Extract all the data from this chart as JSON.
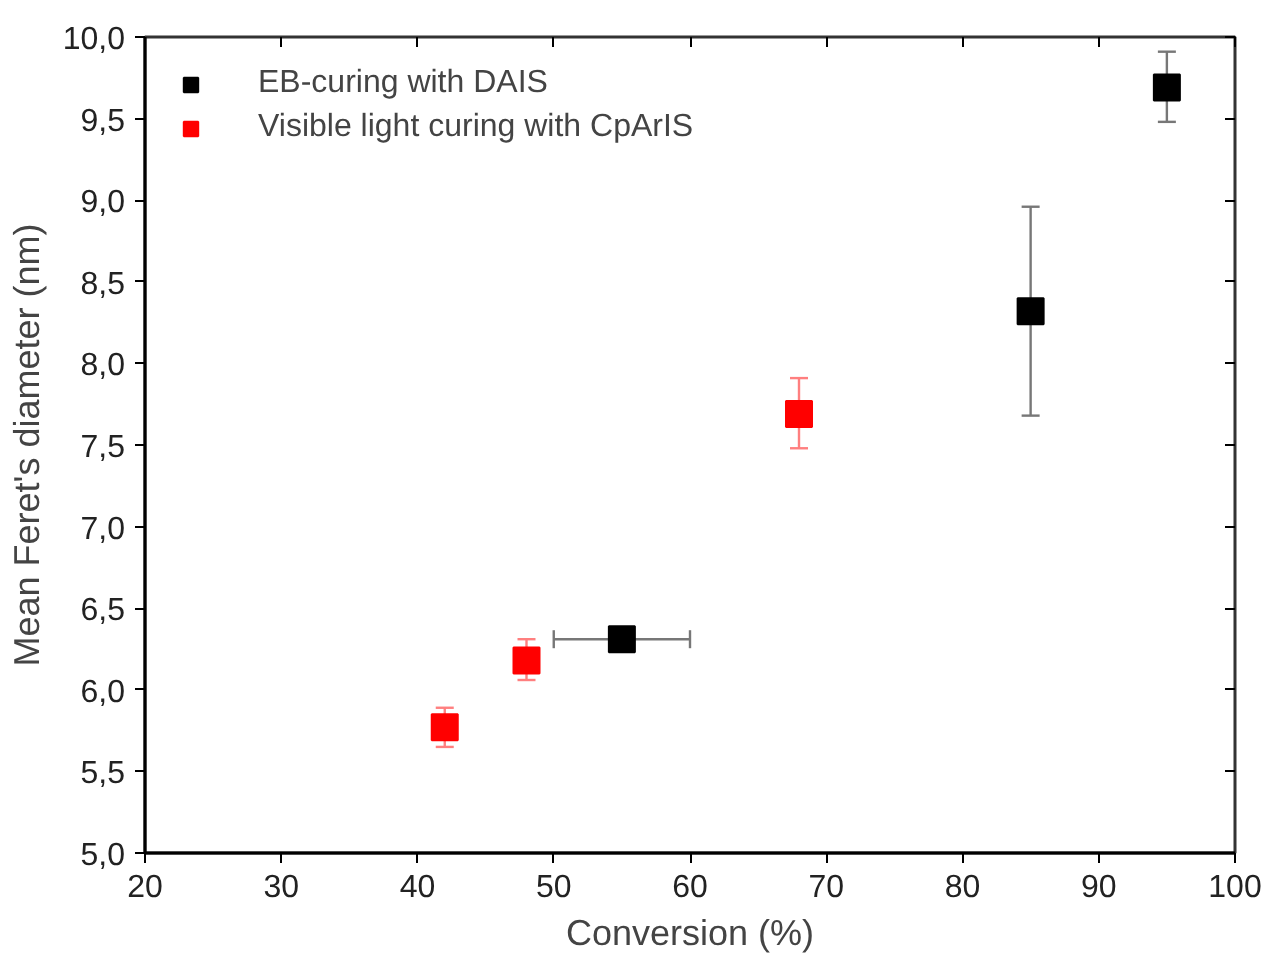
{
  "chart_data": {
    "type": "scatter",
    "xlabel": "Conversion (%)",
    "ylabel": "Mean Feret's diameter (nm)",
    "xlim": [
      20,
      100
    ],
    "ylim": [
      5,
      10
    ],
    "xticks": [
      20,
      30,
      40,
      50,
      60,
      70,
      80,
      90,
      100
    ],
    "yticks": [
      {
        "value": 5,
        "label": "5,0"
      },
      {
        "value": 5.5,
        "label": "5,5"
      },
      {
        "value": 6,
        "label": "6,0"
      },
      {
        "value": 6.5,
        "label": "6,5"
      },
      {
        "value": 7,
        "label": "7,0"
      },
      {
        "value": 7.5,
        "label": "7,5"
      },
      {
        "value": 8,
        "label": "8,0"
      },
      {
        "value": 8.5,
        "label": "8,5"
      },
      {
        "value": 9,
        "label": "9,0"
      },
      {
        "value": 9.5,
        "label": "9,5"
      },
      {
        "value": 10,
        "label": "10,0"
      }
    ],
    "marker": "square",
    "legend": "top left",
    "grid": false,
    "series": [
      {
        "name": "EB-curing with DAIS",
        "color": "#000000",
        "x": [
          55,
          85,
          95
        ],
        "values": [
          6.31,
          8.32,
          9.69
        ],
        "errors": [
          null,
          [
            7.68,
            8.96
          ],
          [
            9.48,
            9.91
          ]
        ],
        "xerrors": [
          [
            50,
            60
          ],
          null,
          null
        ]
      },
      {
        "name": "Visible light curing with CpArIS",
        "color": "#ff0000",
        "x": [
          42,
          48,
          68
        ],
        "values": [
          5.77,
          6.18,
          7.69
        ],
        "errors": [
          [
            5.65,
            5.89
          ],
          [
            6.06,
            6.31
          ],
          [
            7.48,
            7.91
          ]
        ]
      }
    ]
  }
}
